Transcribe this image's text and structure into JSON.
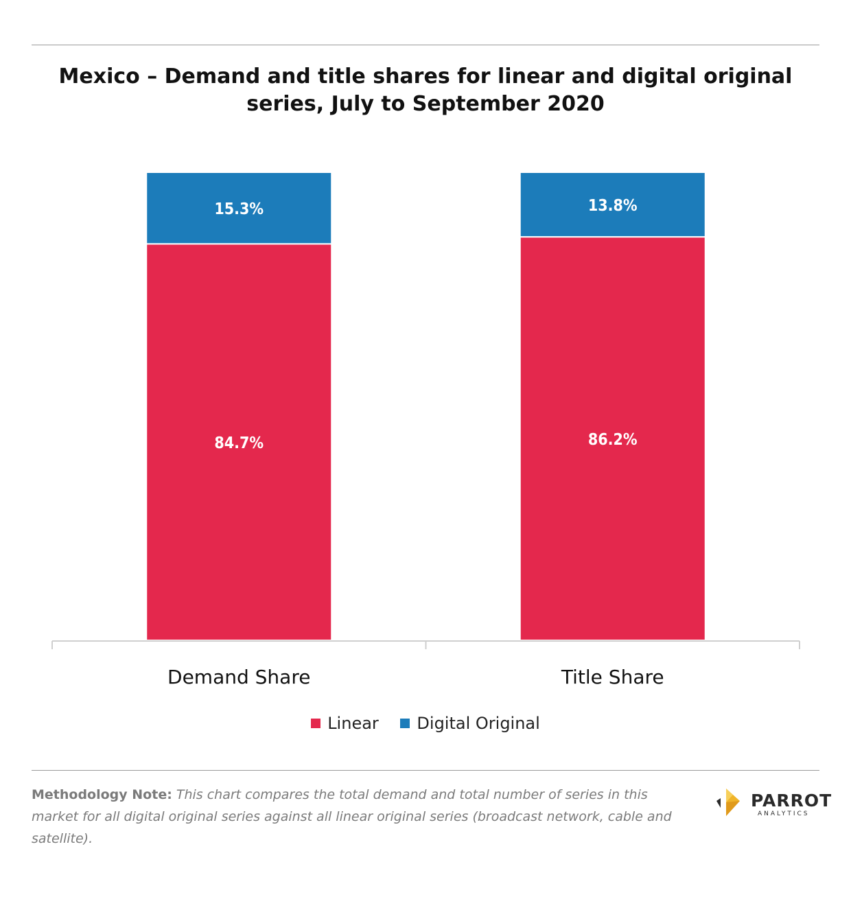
{
  "chart_data": {
    "type": "bar",
    "stacked": true,
    "title": "Mexico – Demand and title shares for linear and digital original series, July to September 2020",
    "categories": [
      "Demand Share",
      "Title Share"
    ],
    "series": [
      {
        "name": "Linear",
        "color": "#e4284d",
        "values": [
          84.7,
          86.2
        ],
        "labels": [
          "84.7%",
          "86.2%"
        ]
      },
      {
        "name": "Digital Original",
        "color": "#1c7cba",
        "values": [
          15.3,
          13.8
        ],
        "labels": [
          "15.3%",
          "13.8%"
        ]
      }
    ],
    "ylim": [
      0,
      100
    ],
    "grid": false,
    "legend_position": "bottom"
  },
  "legend": {
    "items": [
      {
        "label": "Linear",
        "color": "#e4284d"
      },
      {
        "label": "Digital Original",
        "color": "#1c7cba"
      }
    ]
  },
  "footer": {
    "methodology_label": "Methodology Note:",
    "methodology_text": " This chart compares the total demand and total number of series in this market for all digital original series against all linear original series (broadcast network, cable and satellite)."
  },
  "logo": {
    "name": "PARROT",
    "sub": "ANALYTICS",
    "icon": "parrot-logo-icon"
  }
}
